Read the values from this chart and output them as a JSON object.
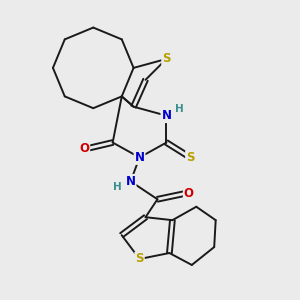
{
  "background_color": "#ebebeb",
  "atom_colors": {
    "C": "#1a1a1a",
    "S": "#b8a000",
    "N": "#0000cc",
    "O": "#cc0000",
    "H": "#3a9090"
  },
  "bond_color": "#1a1a1a",
  "bond_width": 1.4,
  "font_size_atom": 8.5,
  "font_size_h": 7.5
}
